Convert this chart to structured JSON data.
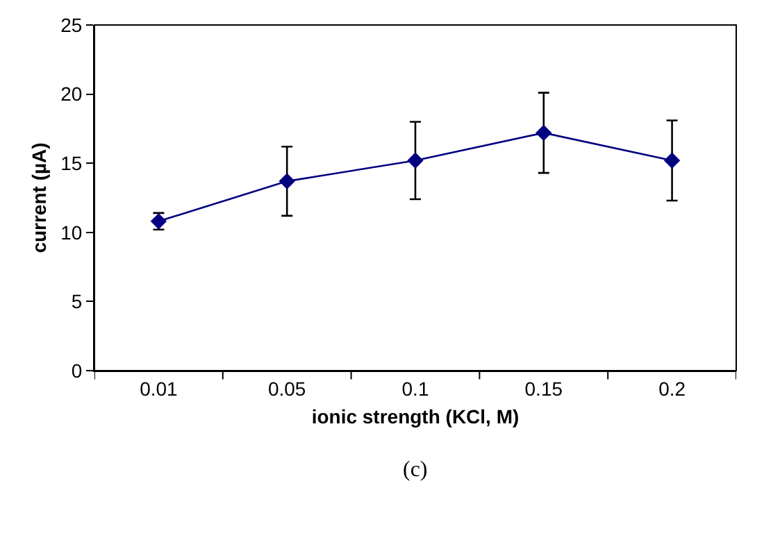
{
  "chart_data": {
    "type": "line",
    "xlabel": "ionic strength (KCl, M)",
    "ylabel": "current (µA)",
    "categories": [
      "0.01",
      "0.05",
      "0.1",
      "0.15",
      "0.2"
    ],
    "series": [
      {
        "color": "#000080",
        "values": [
          10.8,
          13.7,
          15.2,
          17.2,
          15.2
        ],
        "errors": [
          0.6,
          2.5,
          2.8,
          2.9,
          2.9
        ]
      }
    ],
    "ylim": [
      0,
      25
    ],
    "yticks": [
      0,
      5,
      10,
      15,
      20,
      25
    ],
    "marker": "diamond",
    "line_style": "solid",
    "annotations": [
      "(c)"
    ]
  }
}
